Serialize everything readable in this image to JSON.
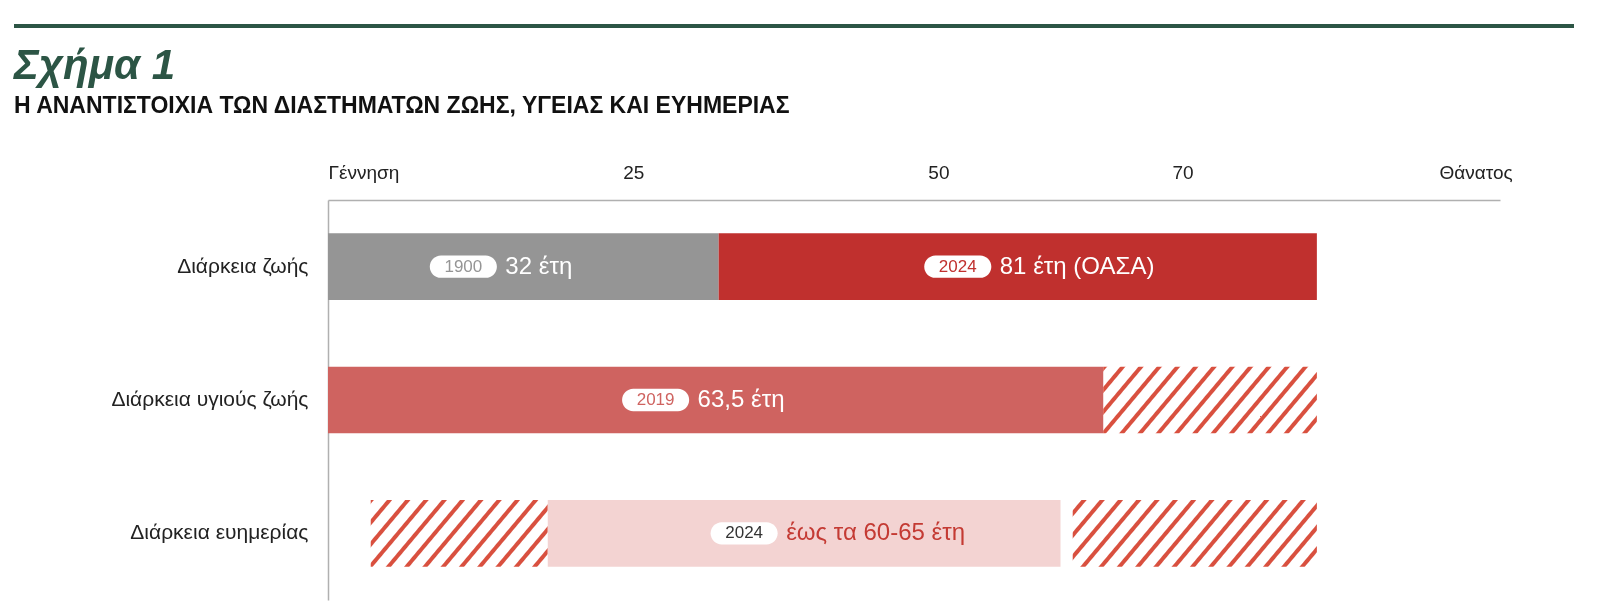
{
  "chart_data": {
    "type": "bar",
    "orientation": "horizontal",
    "title": "Σχήμα 1",
    "subtitle": "Η ΑΝΑΝΤΙΣΤΟΙΧΙΑ ΤΩΝ ΔΙΑΣΤΗΜΑΤΩΝ ΖΩΗΣ, ΥΓΕΙΑΣ ΚΑΙ ΕΥΗΜΕΡΙΑΣ",
    "categories": [
      "Διάρκεια ζωής",
      "Διάρκεια υγιούς ζωής",
      "Διάρκεια ευημερίας"
    ],
    "xlim": [
      0,
      96
    ],
    "xticks": [
      {
        "value": 0,
        "label": "Γέννηση"
      },
      25,
      50,
      70,
      {
        "value": 94,
        "label": "Θάνατος"
      }
    ],
    "grid": false,
    "legend": false,
    "series": [
      {
        "name": "1900",
        "color": "#959595",
        "base": [
          0,
          null,
          null
        ],
        "values": [
          32,
          null,
          null
        ],
        "value_labels": [
          "32 έτη",
          null,
          null
        ]
      },
      {
        "name": "2024",
        "color": "#c0302e",
        "base": [
          32,
          null,
          null
        ],
        "values": [
          49,
          null,
          null
        ],
        "value_labels": [
          "81 έτη (ΟΑΣΑ)",
          null,
          null
        ]
      },
      {
        "name": "2019",
        "color": "#cf6360",
        "base": [
          null,
          0,
          null
        ],
        "values": [
          null,
          63.5,
          null
        ],
        "value_labels": [
          null,
          "63,5 έτη",
          null
        ]
      },
      {
        "color": "#d9503f",
        "base": [
          null,
          63.5,
          null
        ],
        "values": [
          null,
          17.5,
          null
        ]
      },
      {
        "color": "#d9503f",
        "base": [
          null,
          null,
          3.5
        ],
        "values": [
          null,
          null,
          14.5
        ]
      },
      {
        "name": "2024",
        "color": "#f3d3d2",
        "base": [
          null,
          null,
          18
        ],
        "values": [
          null,
          null,
          42
        ],
        "value_labels": [
          null,
          null,
          "έως τα 60-65 έτη"
        ]
      },
      {
        "color": "#d9503f",
        "base": [
          null,
          null,
          61
        ],
        "values": [
          null,
          null,
          20
        ]
      }
    ]
  }
}
